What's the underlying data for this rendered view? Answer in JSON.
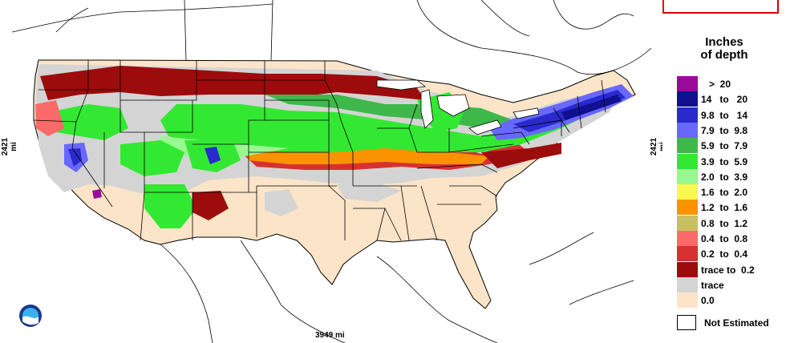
{
  "map": {
    "y_scale_label": "2421 mi",
    "x_scale_label": "3949 mi",
    "logo_text": "NOAA"
  },
  "legend": {
    "title_line1": "Inches",
    "title_line2": "of depth",
    "items": [
      {
        "label": "   >  20",
        "color": "#9a0a9a"
      },
      {
        "label": "14   to   20",
        "color": "#101090"
      },
      {
        "label": "9.8  to   14",
        "color": "#2a2acc"
      },
      {
        "label": "7.9  to  9.8",
        "color": "#6868ff"
      },
      {
        "label": "5.9  to  7.9",
        "color": "#3eb84a"
      },
      {
        "label": "3.9  to  5.9",
        "color": "#33e833"
      },
      {
        "label": "2.0  to  3.9",
        "color": "#98f890"
      },
      {
        "label": "1.6  to  2.0",
        "color": "#f8f850"
      },
      {
        "label": "1.2  to  1.6",
        "color": "#fb9200"
      },
      {
        "label": "0.8  to  1.2",
        "color": "#c8c060"
      },
      {
        "label": "0.4  to  0.8",
        "color": "#fc6a6a"
      },
      {
        "label": "0.2  to  0.4",
        "color": "#d83030"
      },
      {
        "label": "trace to  0.2",
        "color": "#9c0c0c"
      },
      {
        "label": "trace",
        "color": "#d4d4d4"
      },
      {
        "label": "0.0",
        "color": "#fce4c8"
      }
    ],
    "not_estimated_label": "Not Estimated"
  },
  "colors": {
    "background": "#ffffff",
    "no_snow": "#fce4c8",
    "trace": "#d4d4d4",
    "border": "#000000",
    "inset_border": "#e00000"
  }
}
